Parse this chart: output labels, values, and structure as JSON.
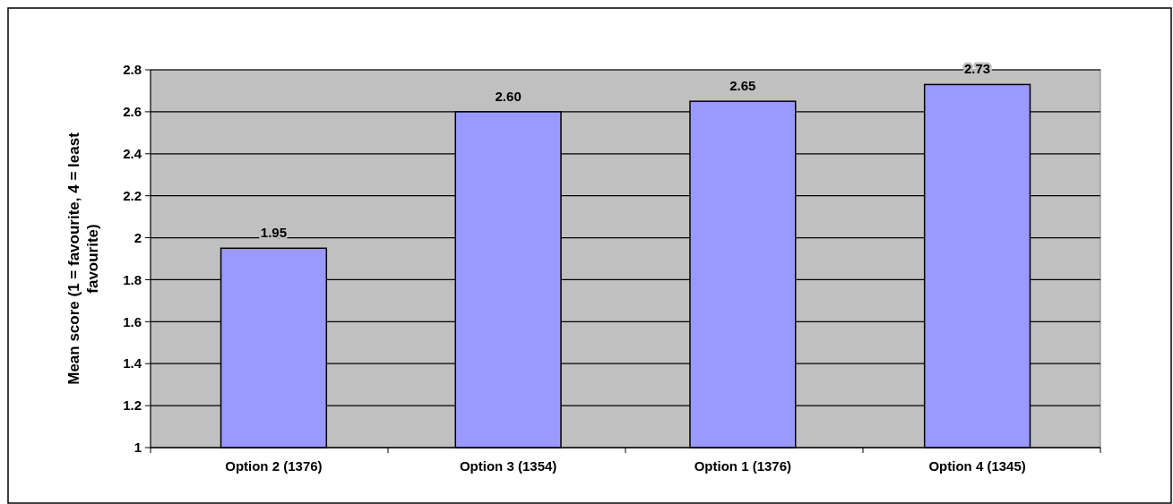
{
  "chart_data": {
    "type": "bar",
    "ylabel": "Mean score (1 = favourite, 4 = least favourite)",
    "categories": [
      "Option 2 (1376)",
      "Option 3 (1354)",
      "Option 1 (1376)",
      "Option 4 (1345)"
    ],
    "values": [
      1.95,
      2.6,
      2.65,
      2.73
    ],
    "value_labels": [
      "1.95",
      "2.60",
      "2.65",
      "2.73"
    ],
    "color": "#9999ff",
    "ylim": [
      1,
      2.8
    ],
    "yticks": [
      1,
      1.2,
      1.4,
      1.6,
      1.8,
      2,
      2.2,
      2.4,
      2.6,
      2.8
    ],
    "grid": "y"
  }
}
